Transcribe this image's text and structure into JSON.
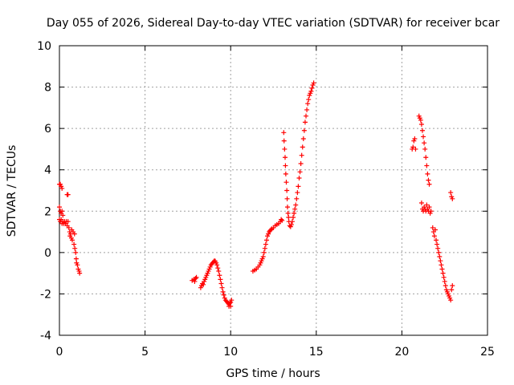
{
  "chart_data": {
    "type": "scatter",
    "title": "Day 055 of 2026, Sidereal Day-to-day VTEC variation (SDTVAR) for receiver bcar",
    "xlabel": "GPS time / hours",
    "ylabel": "SDTVAR / TECUs",
    "xlim": [
      0,
      25
    ],
    "ylim": [
      -4,
      10
    ],
    "x_ticks": [
      0,
      5,
      10,
      15,
      20,
      25
    ],
    "y_ticks": [
      -4,
      -2,
      0,
      2,
      4,
      6,
      8,
      10
    ],
    "x_tick_labels": [
      "0",
      "5",
      "10",
      "15",
      "20",
      "25"
    ],
    "y_tick_labels": [
      "-4",
      "-2",
      "0",
      "2",
      "4",
      "6",
      "8",
      "10"
    ],
    "grid": true,
    "marker": "plus",
    "marker_color": "#ff0000",
    "series": [
      {
        "points": [
          [
            0.0,
            3.3
          ],
          [
            0.05,
            3.3
          ],
          [
            0.1,
            3.2
          ],
          [
            0.15,
            3.1
          ],
          [
            0.0,
            2.2
          ],
          [
            0.05,
            2.0
          ],
          [
            0.1,
            1.9
          ],
          [
            0.15,
            2.0
          ],
          [
            0.2,
            1.8
          ],
          [
            0.0,
            1.6
          ],
          [
            0.05,
            1.5
          ],
          [
            0.1,
            1.6
          ],
          [
            0.15,
            1.4
          ],
          [
            0.2,
            1.5
          ],
          [
            0.25,
            1.4
          ],
          [
            0.3,
            1.5
          ],
          [
            0.35,
            1.4
          ],
          [
            0.4,
            1.5
          ],
          [
            0.45,
            1.3
          ],
          [
            0.5,
            1.5
          ],
          [
            0.45,
            2.8
          ],
          [
            0.5,
            2.8
          ],
          [
            0.55,
            1.2
          ],
          [
            0.6,
            1.0
          ],
          [
            0.62,
            0.8
          ],
          [
            0.65,
            0.9
          ],
          [
            0.7,
            0.7
          ],
          [
            0.72,
            1.1
          ],
          [
            0.75,
            0.6
          ],
          [
            0.8,
            1.0
          ],
          [
            0.85,
            0.4
          ],
          [
            0.88,
            0.9
          ],
          [
            0.9,
            0.2
          ],
          [
            0.95,
            0.0
          ],
          [
            0.98,
            -0.3
          ],
          [
            1.0,
            -0.5
          ],
          [
            1.05,
            -0.6
          ],
          [
            1.1,
            -0.8
          ],
          [
            1.15,
            -0.9
          ],
          [
            1.18,
            -1.0
          ],
          [
            7.75,
            -1.35
          ],
          [
            7.85,
            -1.3
          ],
          [
            7.95,
            -1.25
          ],
          [
            8.0,
            -1.2
          ],
          [
            7.9,
            -1.4
          ],
          [
            8.25,
            -1.7
          ],
          [
            8.3,
            -1.6
          ],
          [
            8.35,
            -1.5
          ],
          [
            8.4,
            -1.55
          ],
          [
            8.45,
            -1.4
          ],
          [
            8.5,
            -1.3
          ],
          [
            8.55,
            -1.2
          ],
          [
            8.6,
            -1.1
          ],
          [
            8.65,
            -1.0
          ],
          [
            8.7,
            -0.9
          ],
          [
            8.75,
            -0.8
          ],
          [
            8.8,
            -0.7
          ],
          [
            8.85,
            -0.6
          ],
          [
            8.9,
            -0.55
          ],
          [
            8.95,
            -0.5
          ],
          [
            9.0,
            -0.45
          ],
          [
            9.05,
            -0.4
          ],
          [
            9.1,
            -0.42
          ],
          [
            9.15,
            -0.5
          ],
          [
            9.2,
            -0.6
          ],
          [
            9.25,
            -0.75
          ],
          [
            9.3,
            -0.9
          ],
          [
            9.35,
            -1.1
          ],
          [
            9.4,
            -1.3
          ],
          [
            9.45,
            -1.5
          ],
          [
            9.5,
            -1.7
          ],
          [
            9.55,
            -1.9
          ],
          [
            9.6,
            -2.05
          ],
          [
            9.65,
            -2.2
          ],
          [
            9.7,
            -2.3
          ],
          [
            9.75,
            -2.35
          ],
          [
            9.8,
            -2.4
          ],
          [
            9.85,
            -2.45
          ],
          [
            9.9,
            -2.5
          ],
          [
            9.95,
            -2.45
          ],
          [
            10.0,
            -2.4
          ],
          [
            10.05,
            -2.3
          ],
          [
            9.9,
            -2.6
          ],
          [
            10.0,
            -2.6
          ],
          [
            11.3,
            -0.9
          ],
          [
            11.4,
            -0.85
          ],
          [
            11.5,
            -0.8
          ],
          [
            11.6,
            -0.7
          ],
          [
            11.7,
            -0.6
          ],
          [
            11.75,
            -0.5
          ],
          [
            11.8,
            -0.4
          ],
          [
            11.85,
            -0.3
          ],
          [
            11.9,
            -0.2
          ],
          [
            11.95,
            0.0
          ],
          [
            12.0,
            0.2
          ],
          [
            12.05,
            0.4
          ],
          [
            12.1,
            0.6
          ],
          [
            12.15,
            0.8
          ],
          [
            12.2,
            0.9
          ],
          [
            12.25,
            1.0
          ],
          [
            12.3,
            1.05
          ],
          [
            12.35,
            1.1
          ],
          [
            12.4,
            1.15
          ],
          [
            12.5,
            1.2
          ],
          [
            12.6,
            1.3
          ],
          [
            12.7,
            1.35
          ],
          [
            12.8,
            1.4
          ],
          [
            12.9,
            1.5
          ],
          [
            12.95,
            1.6
          ],
          [
            13.0,
            1.55
          ],
          [
            13.1,
            5.8
          ],
          [
            13.12,
            5.4
          ],
          [
            13.15,
            5.0
          ],
          [
            13.18,
            4.6
          ],
          [
            13.2,
            4.2
          ],
          [
            13.22,
            3.8
          ],
          [
            13.25,
            3.4
          ],
          [
            13.28,
            3.0
          ],
          [
            13.3,
            2.6
          ],
          [
            13.32,
            2.2
          ],
          [
            13.35,
            1.9
          ],
          [
            13.38,
            1.7
          ],
          [
            13.4,
            1.5
          ],
          [
            13.45,
            1.3
          ],
          [
            13.5,
            1.25
          ],
          [
            13.55,
            1.35
          ],
          [
            13.6,
            1.5
          ],
          [
            13.65,
            1.7
          ],
          [
            13.7,
            1.9
          ],
          [
            13.75,
            2.1
          ],
          [
            13.8,
            2.3
          ],
          [
            13.85,
            2.6
          ],
          [
            13.9,
            2.9
          ],
          [
            13.95,
            3.2
          ],
          [
            14.0,
            3.6
          ],
          [
            14.05,
            3.9
          ],
          [
            14.1,
            4.3
          ],
          [
            14.15,
            4.7
          ],
          [
            14.2,
            5.1
          ],
          [
            14.25,
            5.5
          ],
          [
            14.3,
            5.9
          ],
          [
            14.35,
            6.3
          ],
          [
            14.4,
            6.6
          ],
          [
            14.45,
            6.9
          ],
          [
            14.5,
            7.2
          ],
          [
            14.55,
            7.4
          ],
          [
            14.6,
            7.6
          ],
          [
            14.65,
            7.7
          ],
          [
            14.7,
            7.8
          ],
          [
            14.75,
            7.95
          ],
          [
            14.8,
            8.1
          ],
          [
            14.85,
            8.2
          ],
          [
            20.6,
            5.0
          ],
          [
            20.65,
            5.1
          ],
          [
            20.7,
            5.4
          ],
          [
            20.75,
            5.5
          ],
          [
            20.8,
            5.0
          ],
          [
            21.0,
            6.6
          ],
          [
            21.05,
            6.5
          ],
          [
            21.1,
            6.4
          ],
          [
            21.15,
            6.2
          ],
          [
            21.2,
            5.9
          ],
          [
            21.25,
            5.6
          ],
          [
            21.3,
            5.3
          ],
          [
            21.35,
            5.0
          ],
          [
            21.4,
            4.6
          ],
          [
            21.45,
            4.2
          ],
          [
            21.5,
            3.8
          ],
          [
            21.55,
            3.5
          ],
          [
            21.6,
            3.3
          ],
          [
            21.15,
            2.4
          ],
          [
            21.2,
            2.1
          ],
          [
            21.25,
            2.0
          ],
          [
            21.3,
            2.2
          ],
          [
            21.35,
            2.1
          ],
          [
            21.4,
            2.0
          ],
          [
            21.45,
            2.3
          ],
          [
            21.5,
            2.1
          ],
          [
            21.55,
            2.0
          ],
          [
            21.6,
            2.2
          ],
          [
            21.65,
            1.9
          ],
          [
            21.7,
            2.0
          ],
          [
            21.8,
            1.2
          ],
          [
            21.85,
            1.0
          ],
          [
            21.9,
            0.8
          ],
          [
            21.95,
            1.1
          ],
          [
            22.0,
            0.6
          ],
          [
            22.05,
            0.4
          ],
          [
            22.1,
            0.2
          ],
          [
            22.15,
            0.0
          ],
          [
            22.2,
            -0.2
          ],
          [
            22.25,
            -0.4
          ],
          [
            22.3,
            -0.6
          ],
          [
            22.35,
            -0.8
          ],
          [
            22.4,
            -1.0
          ],
          [
            22.45,
            -1.2
          ],
          [
            22.5,
            -1.4
          ],
          [
            22.55,
            -1.6
          ],
          [
            22.6,
            -1.8
          ],
          [
            22.65,
            -1.9
          ],
          [
            22.7,
            -2.0
          ],
          [
            22.75,
            -2.1
          ],
          [
            22.8,
            -2.2
          ],
          [
            22.85,
            -2.3
          ],
          [
            22.9,
            -1.8
          ],
          [
            22.95,
            -1.6
          ],
          [
            22.85,
            2.9
          ],
          [
            22.9,
            2.7
          ],
          [
            22.95,
            2.6
          ]
        ]
      }
    ]
  }
}
